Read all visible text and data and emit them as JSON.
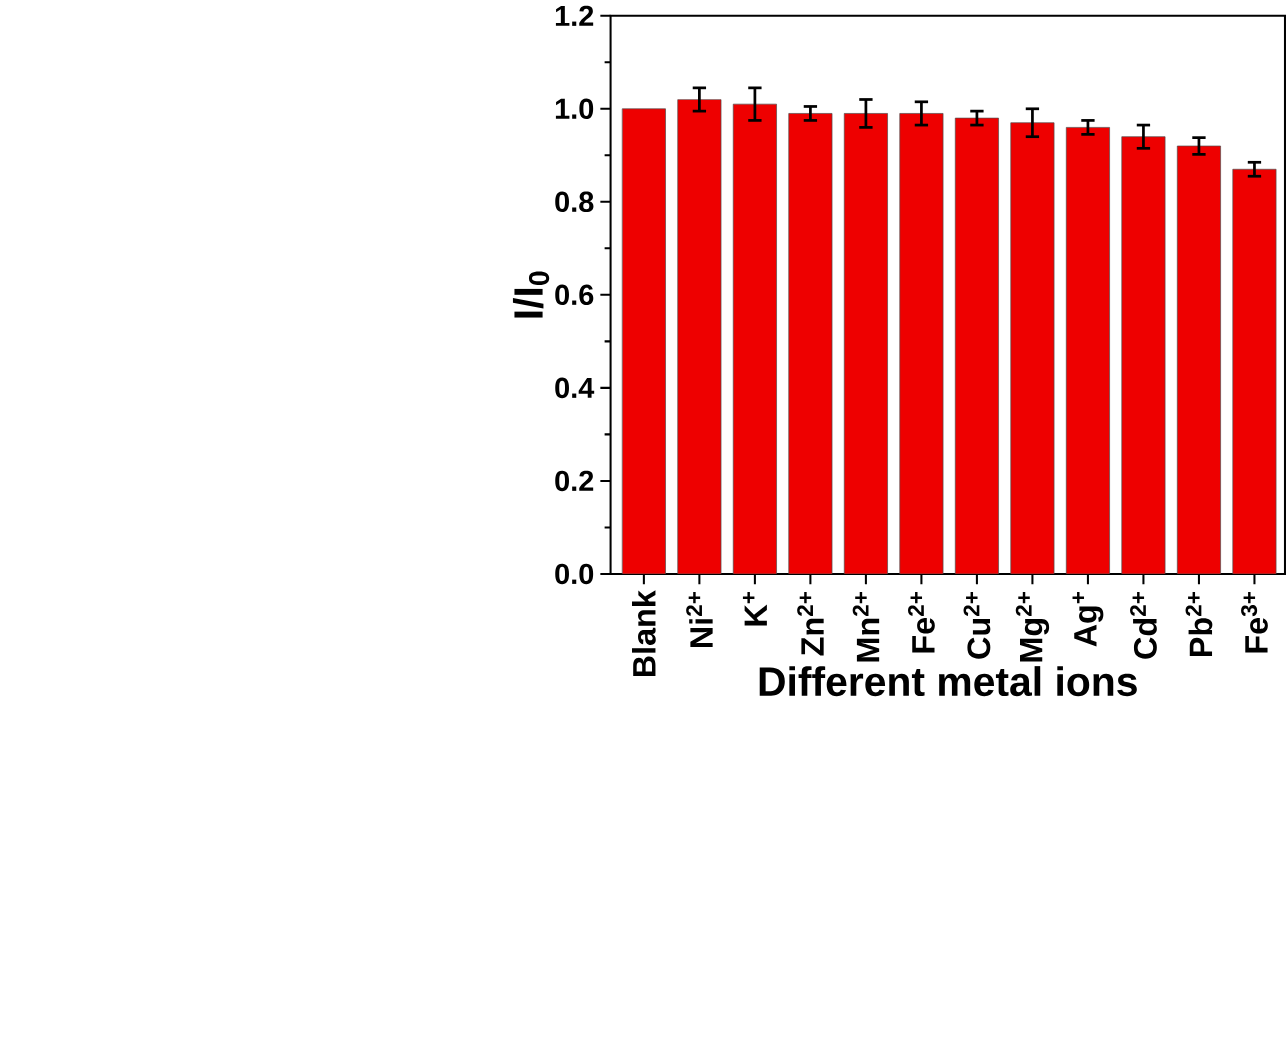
{
  "chart_data": {
    "type": "bar",
    "xlabel": "Different metal ions",
    "ylabel": "I/I$_{0}$",
    "categories": [
      "Blank",
      "Ni$^{2+}$",
      "K$^{+}$",
      "Zn$^{2+}$",
      "Mn$^{2+}$",
      "Fe$^{2+}$",
      "Cu$^{2+}$",
      "Mg$^{2+}$",
      "Ag$^{+}$",
      "Cd$^{2+}$",
      "Pb$^{2+}$",
      "Fe$^{3+}$"
    ],
    "values": [
      1.0,
      1.02,
      1.01,
      0.99,
      0.99,
      0.99,
      0.98,
      0.97,
      0.96,
      0.94,
      0.92,
      0.87
    ],
    "errors": [
      null,
      0.025,
      0.035,
      0.015,
      0.03,
      0.025,
      0.015,
      0.03,
      0.015,
      0.025,
      0.018,
      0.015
    ],
    "color": "#ee0000",
    "ylim": [
      0,
      1.2
    ],
    "yticks": [
      {
        "value": 0,
        "label": "0.0"
      },
      {
        "value": 0.2,
        "label": "0.2"
      },
      {
        "value": 0.4,
        "label": "0.4"
      },
      {
        "value": 0.6,
        "label": "0.6"
      },
      {
        "value": 0.8,
        "label": "0.8"
      },
      {
        "value": 1.0,
        "label": "1.0"
      },
      {
        "value": 1.2,
        "label": "1.2"
      }
    ]
  }
}
